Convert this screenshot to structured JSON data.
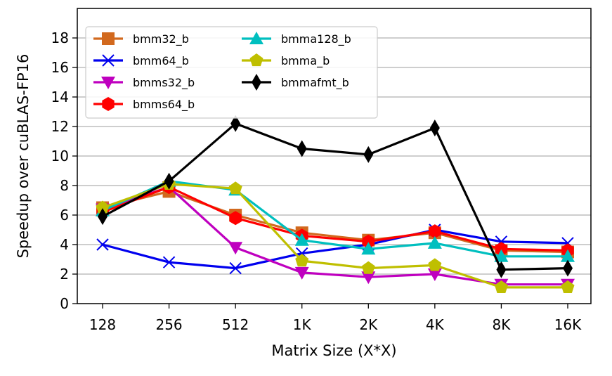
{
  "chart_data": {
    "type": "line",
    "xlabel": "Matrix Size (X*X)",
    "ylabel": "Speedup over cuBLAS-FP16",
    "categories": [
      "128",
      "256",
      "512",
      "1K",
      "2K",
      "4K",
      "8K",
      "16K"
    ],
    "ylim": [
      0,
      20
    ],
    "yticks": [
      0,
      2,
      4,
      6,
      8,
      10,
      12,
      14,
      16,
      18
    ],
    "grid": "horizontal",
    "legend_position": "top-left",
    "series": [
      {
        "name": "bmm32_b",
        "color": "#d2691e",
        "marker": "square",
        "values": [
          6.5,
          7.6,
          6.0,
          4.8,
          4.3,
          4.8,
          3.6,
          3.5
        ]
      },
      {
        "name": "bmm64_b",
        "color": "#0000ee",
        "marker": "x",
        "values": [
          4.0,
          2.8,
          2.4,
          3.4,
          4.0,
          5.0,
          4.2,
          4.1
        ]
      },
      {
        "name": "bmms32_b",
        "color": "#bf00bf",
        "marker": "triangle-down",
        "values": [
          6.4,
          7.9,
          3.8,
          2.1,
          1.8,
          2.0,
          1.3,
          1.3
        ]
      },
      {
        "name": "bmms64_b",
        "color": "#ff0000",
        "marker": "hexagon",
        "values": [
          6.2,
          7.9,
          5.8,
          4.6,
          4.2,
          4.9,
          3.7,
          3.6
        ]
      },
      {
        "name": "bmma128_b",
        "color": "#00bfbf",
        "marker": "triangle-up",
        "values": [
          6.3,
          8.3,
          7.7,
          4.3,
          3.7,
          4.1,
          3.2,
          3.2
        ]
      },
      {
        "name": "bmma_b",
        "color": "#bfbf00",
        "marker": "pentagon",
        "values": [
          6.5,
          8.1,
          7.8,
          2.9,
          2.4,
          2.6,
          1.1,
          1.1
        ]
      },
      {
        "name": "bmmafmt_b",
        "color": "#000000",
        "marker": "thin-diamond",
        "values": [
          5.9,
          8.3,
          12.2,
          10.5,
          10.1,
          11.9,
          2.3,
          2.4
        ]
      }
    ]
  }
}
